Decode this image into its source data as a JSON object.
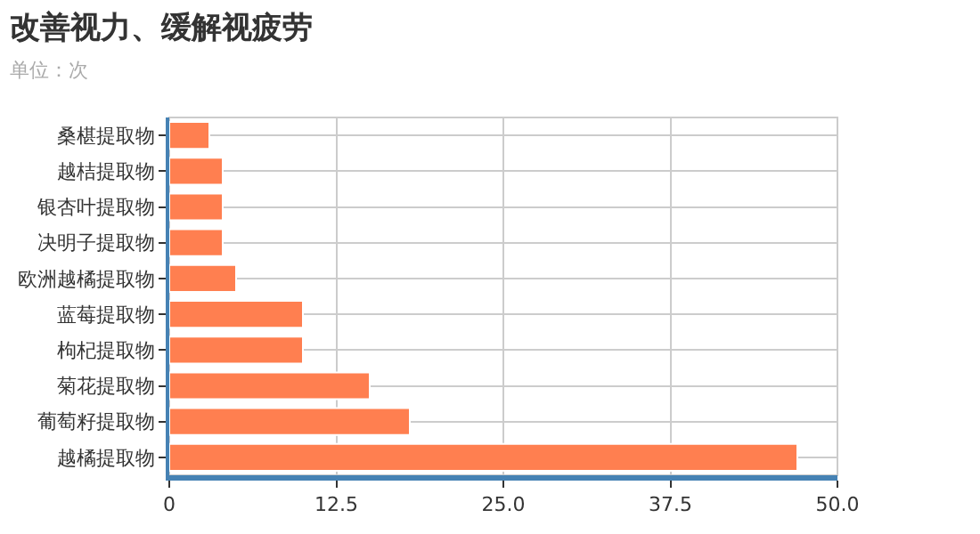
{
  "chart_data": {
    "type": "bar",
    "orientation": "horizontal",
    "title": "改善视力、缓解视疲劳",
    "subtitle": "单位：次",
    "categories": [
      "桑椹提取物",
      "越桔提取物",
      "银杏叶提取物",
      "决明子提取物",
      "欧洲越橘提取物",
      "蓝莓提取物",
      "枸杞提取物",
      "菊花提取物",
      "葡萄籽提取物",
      "越橘提取物"
    ],
    "values": [
      3,
      4,
      4,
      4,
      5,
      10,
      10,
      15,
      18,
      47
    ],
    "color": "#ff7f50",
    "xlim": [
      0,
      50
    ],
    "xticks": [
      {
        "value": 0,
        "label": "0"
      },
      {
        "value": 12.5,
        "label": "12.5"
      },
      {
        "value": 25,
        "label": "25.0"
      },
      {
        "value": 37.5,
        "label": "37.5"
      },
      {
        "value": 50,
        "label": "50.0"
      }
    ],
    "grid": true
  }
}
